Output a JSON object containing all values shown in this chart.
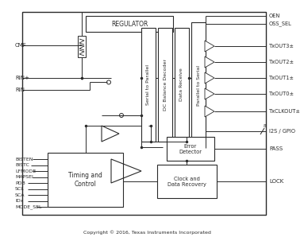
{
  "copyright": "Copyright © 2016, Texas Instruments Incorporated",
  "line_color": "#2a2a2a",
  "tx_labels": [
    "TxOUT3±",
    "TxOUT2±",
    "TxOUT1±",
    "TxOUT0±",
    "TxCLKOUT±"
  ],
  "left_bot_labels": [
    "BISTEN",
    "BISTC",
    "LFMODE",
    "MAPSEL",
    "PDB",
    "SCL",
    "SCA",
    "IDx",
    "MODE_SEL"
  ]
}
